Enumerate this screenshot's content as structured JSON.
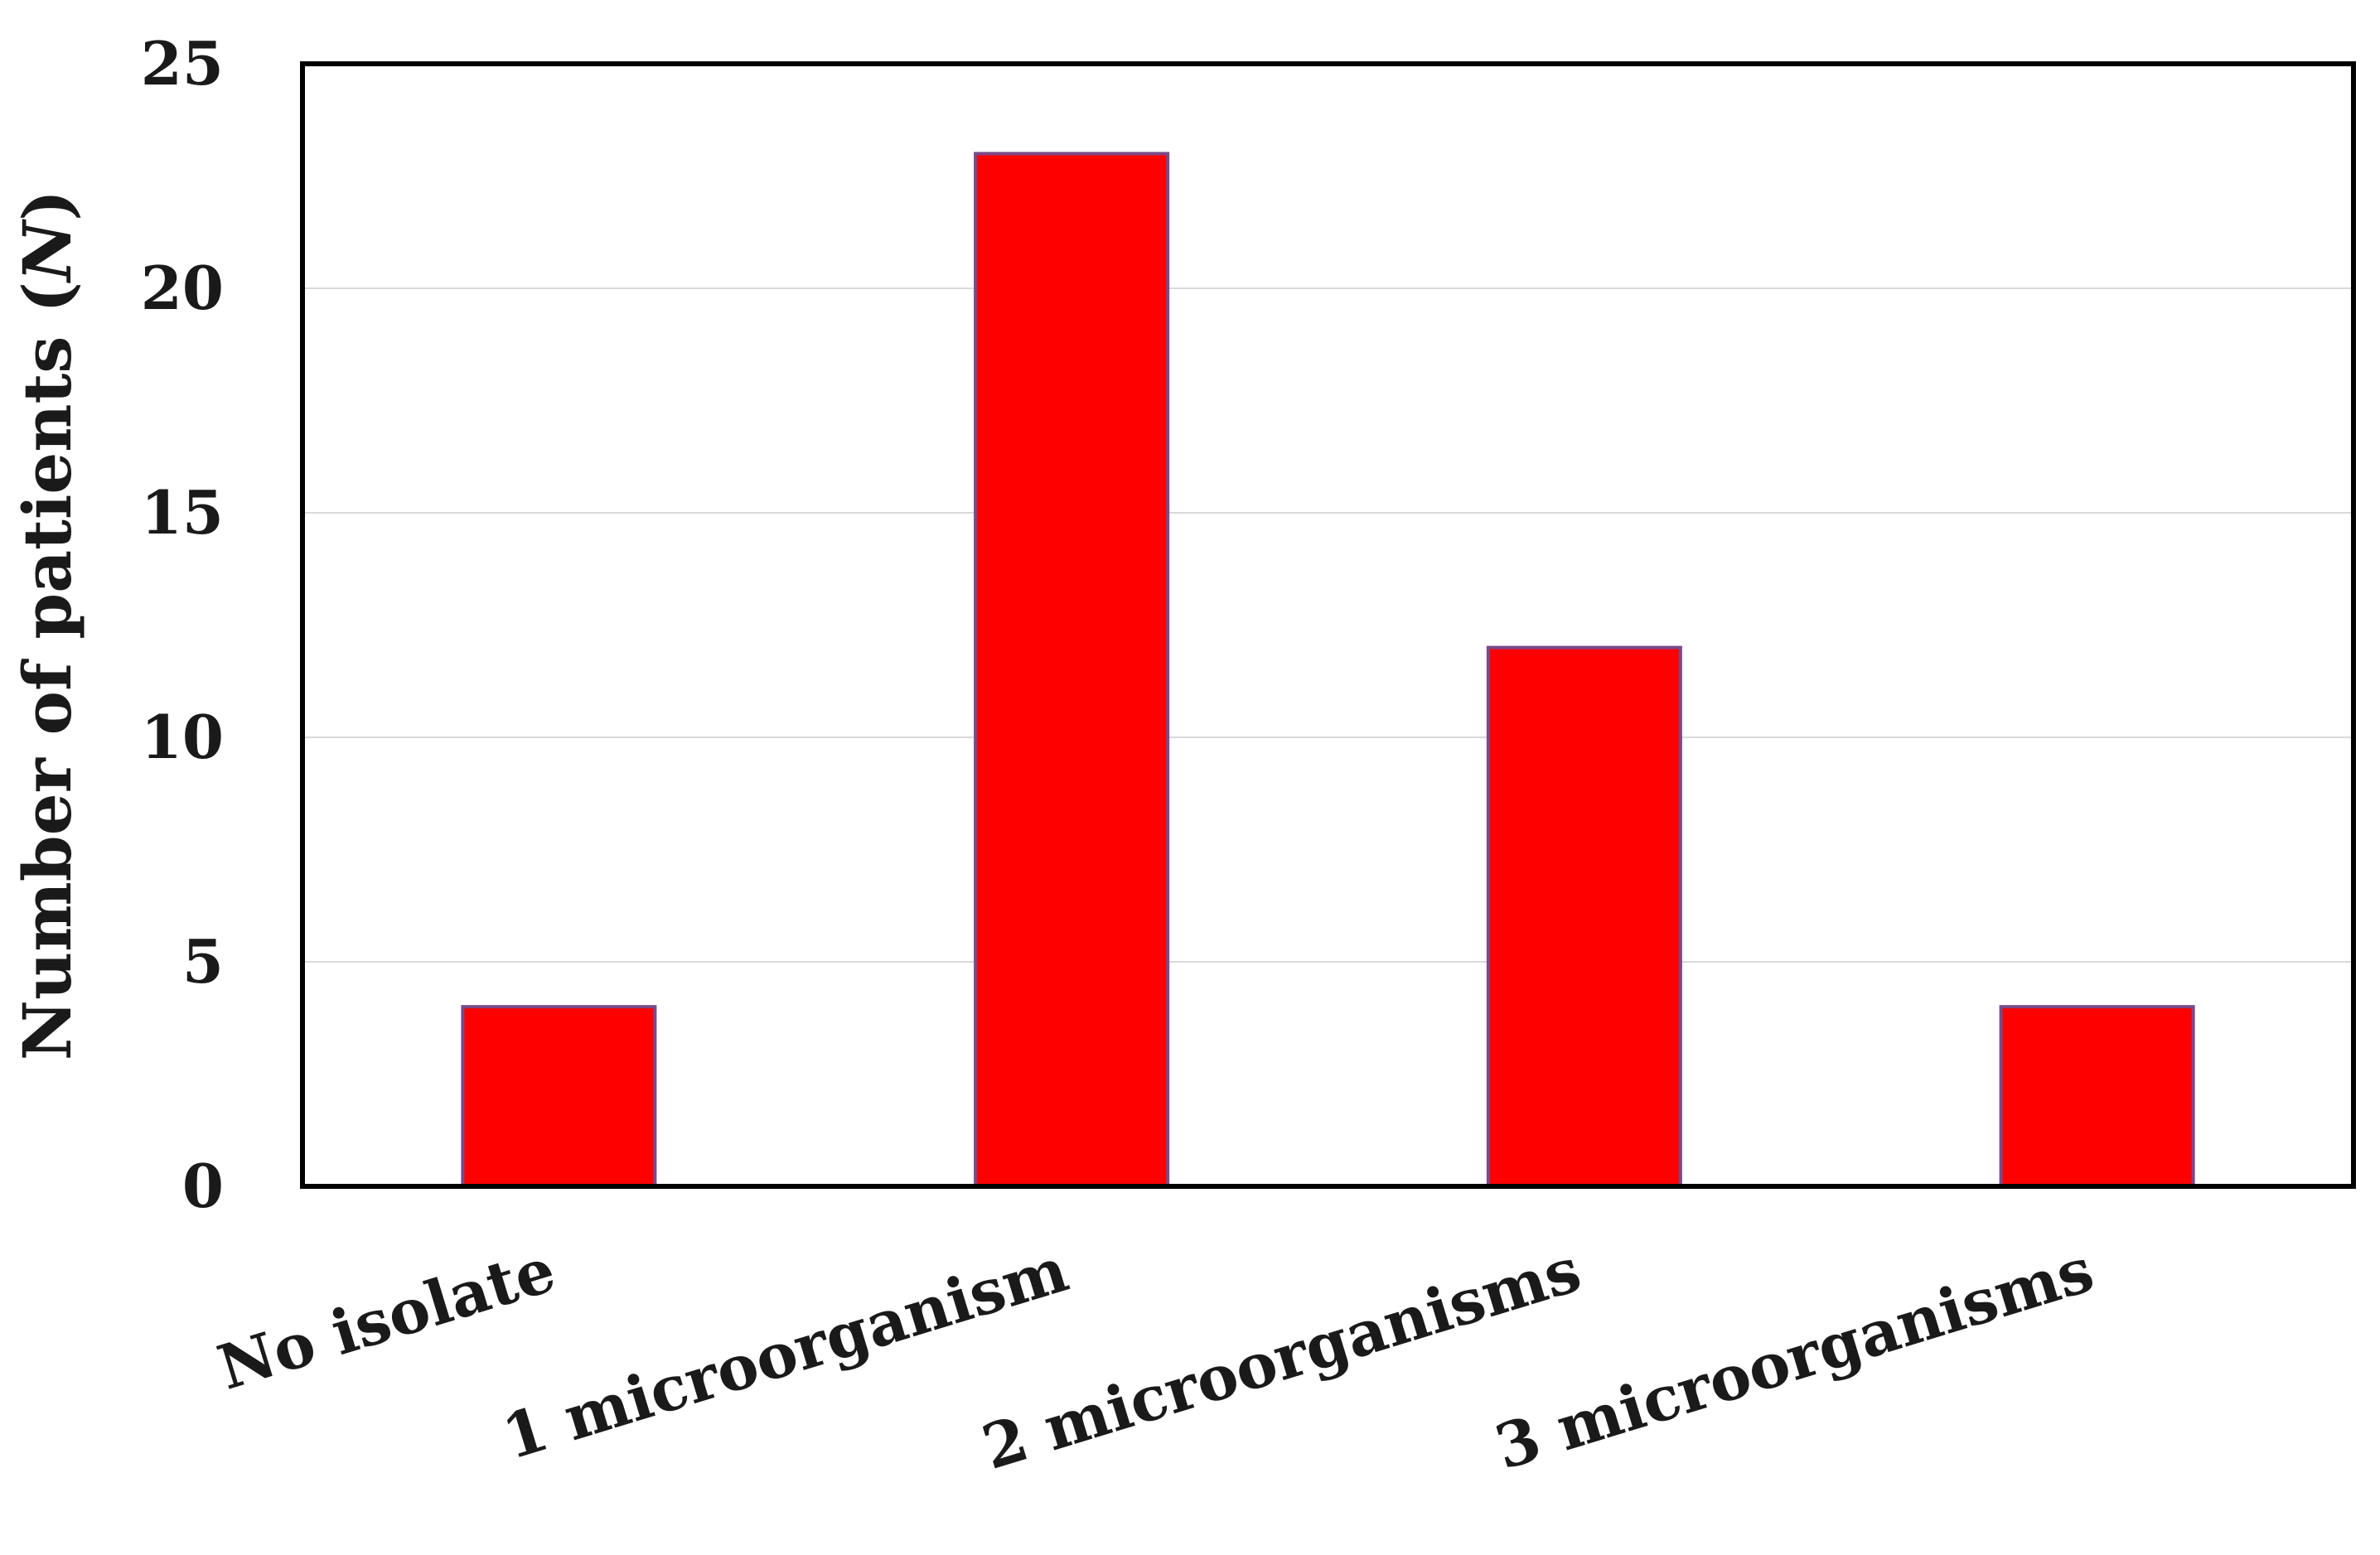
{
  "chart_data": {
    "type": "bar",
    "categories": [
      "No isolate",
      "1 microorganism",
      "2 microorganisms",
      "3 microorganisms"
    ],
    "values": [
      4,
      23,
      12,
      4
    ],
    "xlabel": "",
    "ylabel": "Number of patients (",
    "ylabel_italic": "N",
    "ylabel_suffix": ")",
    "ylim": [
      0,
      25
    ],
    "yticks": [
      0,
      5,
      10,
      15,
      20,
      25
    ],
    "grid": true,
    "legend": "none",
    "bar_color": "#ff0000",
    "bar_edge_color": "#7a4a8a"
  }
}
